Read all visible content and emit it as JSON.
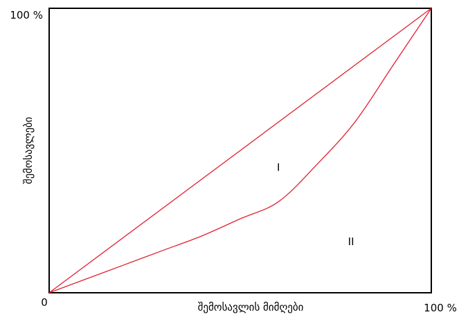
{
  "chart_data": {
    "type": "line",
    "title": "",
    "xlabel": "შემოსავლის მიმღები",
    "ylabel": "შემოსავლები",
    "xlim": [
      0,
      100
    ],
    "ylim": [
      0,
      100
    ],
    "x_tick_labels": {
      "min": "0",
      "max": "100 %"
    },
    "y_tick_labels": {
      "max": "100 %"
    },
    "grid": false,
    "legend": "none",
    "series": [
      {
        "x": [
          0,
          100
        ],
        "y": [
          0,
          100
        ]
      },
      {
        "x": [
          0,
          10,
          20,
          30,
          40,
          50,
          60,
          70,
          80,
          90,
          100
        ],
        "y": [
          0,
          5,
          10,
          15,
          20,
          26,
          32,
          45,
          60,
          80,
          100
        ]
      }
    ],
    "annotations": [
      {
        "text": "I",
        "x": 60,
        "y": 44
      },
      {
        "text": "II",
        "x": 79,
        "y": 18
      }
    ],
    "line_color": "#e0202e",
    "frame_color": "#000000"
  }
}
